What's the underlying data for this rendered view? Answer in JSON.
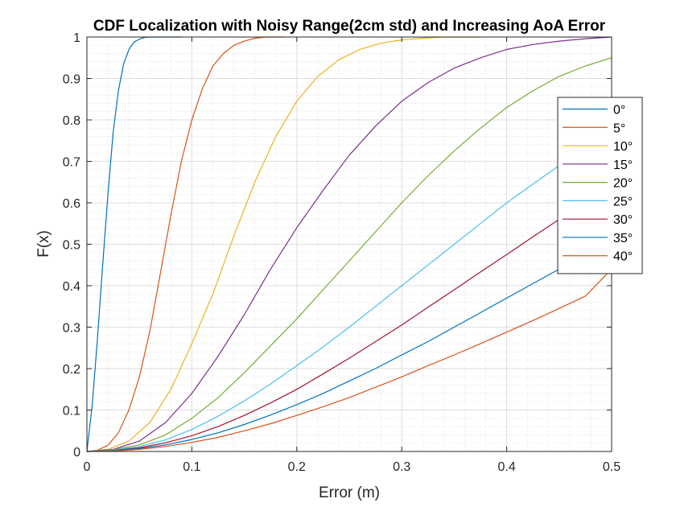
{
  "chart_data": {
    "type": "line",
    "title": "CDF Localization with Noisy Range(2cm std) and Increasing AoA Error",
    "xlabel": "Error (m)",
    "ylabel": "F(x)",
    "xlim": [
      0,
      0.5
    ],
    "ylim": [
      0,
      1
    ],
    "xticks": [
      "0",
      "0.1",
      "0.2",
      "0.3",
      "0.4",
      "0.5"
    ],
    "yticks": [
      "0",
      "0.1",
      "0.2",
      "0.3",
      "0.4",
      "0.5",
      "0.6",
      "0.7",
      "0.8",
      "0.9",
      "1"
    ],
    "grid": "major and minor",
    "legend_position": "east",
    "series": [
      {
        "name": "0°",
        "color": "#0072BD",
        "x": [
          0,
          0.005,
          0.01,
          0.015,
          0.02,
          0.025,
          0.03,
          0.035,
          0.04,
          0.045,
          0.05,
          0.055,
          0.06,
          0.07,
          0.08,
          0.09
        ],
        "y": [
          0,
          0.11,
          0.27,
          0.45,
          0.62,
          0.77,
          0.87,
          0.935,
          0.97,
          0.988,
          0.995,
          0.999,
          1,
          1,
          1,
          1
        ]
      },
      {
        "name": "5°",
        "color": "#D95319",
        "x": [
          0,
          0.01,
          0.02,
          0.03,
          0.04,
          0.05,
          0.06,
          0.07,
          0.08,
          0.09,
          0.1,
          0.11,
          0.12,
          0.13,
          0.14,
          0.15,
          0.16,
          0.17,
          0.18,
          0.19
        ],
        "y": [
          0,
          0.003,
          0.015,
          0.045,
          0.1,
          0.18,
          0.29,
          0.43,
          0.57,
          0.7,
          0.8,
          0.875,
          0.93,
          0.96,
          0.98,
          0.99,
          0.997,
          1,
          1,
          1
        ]
      },
      {
        "name": "10°",
        "color": "#EDB120",
        "x": [
          0,
          0.02,
          0.04,
          0.06,
          0.08,
          0.1,
          0.12,
          0.14,
          0.16,
          0.18,
          0.2,
          0.22,
          0.24,
          0.26,
          0.28,
          0.3,
          0.32,
          0.34,
          0.36,
          0.375
        ],
        "y": [
          0,
          0.005,
          0.025,
          0.07,
          0.15,
          0.26,
          0.38,
          0.52,
          0.65,
          0.76,
          0.845,
          0.905,
          0.945,
          0.97,
          0.985,
          0.993,
          0.997,
          1,
          1,
          1
        ]
      },
      {
        "name": "15°",
        "color": "#7E2F8E",
        "x": [
          0,
          0.025,
          0.05,
          0.075,
          0.1,
          0.125,
          0.15,
          0.175,
          0.2,
          0.225,
          0.25,
          0.275,
          0.3,
          0.325,
          0.35,
          0.375,
          0.4,
          0.425,
          0.45,
          0.475,
          0.5
        ],
        "y": [
          0,
          0.005,
          0.025,
          0.07,
          0.14,
          0.23,
          0.33,
          0.44,
          0.54,
          0.63,
          0.715,
          0.785,
          0.845,
          0.89,
          0.925,
          0.95,
          0.97,
          0.982,
          0.99,
          0.996,
          1
        ]
      },
      {
        "name": "20°",
        "color": "#77AC30",
        "x": [
          0,
          0.025,
          0.05,
          0.075,
          0.1,
          0.125,
          0.15,
          0.175,
          0.2,
          0.225,
          0.25,
          0.275,
          0.3,
          0.325,
          0.35,
          0.375,
          0.4,
          0.425,
          0.45,
          0.475,
          0.5
        ],
        "y": [
          0,
          0.004,
          0.016,
          0.04,
          0.08,
          0.13,
          0.19,
          0.255,
          0.32,
          0.39,
          0.46,
          0.53,
          0.6,
          0.665,
          0.725,
          0.78,
          0.83,
          0.87,
          0.905,
          0.93,
          0.95
        ]
      },
      {
        "name": "25°",
        "color": "#4DBEEE",
        "x": [
          0,
          0.025,
          0.05,
          0.075,
          0.1,
          0.125,
          0.15,
          0.175,
          0.2,
          0.225,
          0.25,
          0.275,
          0.3,
          0.325,
          0.35,
          0.375,
          0.4,
          0.425,
          0.45,
          0.475,
          0.5
        ],
        "y": [
          0,
          0.003,
          0.012,
          0.028,
          0.053,
          0.085,
          0.122,
          0.163,
          0.207,
          0.252,
          0.3,
          0.35,
          0.4,
          0.45,
          0.5,
          0.55,
          0.6,
          0.645,
          0.69,
          0.73,
          0.77
        ]
      },
      {
        "name": "30°",
        "color": "#A2142F",
        "x": [
          0,
          0.025,
          0.05,
          0.075,
          0.1,
          0.125,
          0.15,
          0.175,
          0.2,
          0.225,
          0.25,
          0.275,
          0.3,
          0.325,
          0.35,
          0.375,
          0.4,
          0.425,
          0.45,
          0.475,
          0.5
        ],
        "y": [
          0,
          0.002,
          0.009,
          0.021,
          0.038,
          0.06,
          0.087,
          0.117,
          0.15,
          0.187,
          0.225,
          0.265,
          0.305,
          0.348,
          0.39,
          0.433,
          0.475,
          0.518,
          0.56,
          0.598,
          0.635
        ]
      },
      {
        "name": "35°",
        "color": "#0072BD",
        "x": [
          0,
          0.025,
          0.05,
          0.075,
          0.1,
          0.125,
          0.15,
          0.175,
          0.2,
          0.225,
          0.25,
          0.275,
          0.3,
          0.325,
          0.35,
          0.375,
          0.4,
          0.425,
          0.45,
          0.475,
          0.5
        ],
        "y": [
          0,
          0.002,
          0.007,
          0.016,
          0.029,
          0.045,
          0.065,
          0.088,
          0.113,
          0.14,
          0.17,
          0.2,
          0.233,
          0.265,
          0.3,
          0.335,
          0.37,
          0.405,
          0.44,
          0.475,
          0.51
        ]
      },
      {
        "name": "40°",
        "color": "#D95319",
        "x": [
          0,
          0.025,
          0.05,
          0.075,
          0.1,
          0.125,
          0.15,
          0.175,
          0.2,
          0.225,
          0.25,
          0.275,
          0.3,
          0.325,
          0.35,
          0.375,
          0.4,
          0.425,
          0.45,
          0.475,
          0.5
        ],
        "y": [
          0,
          0.001,
          0.005,
          0.012,
          0.022,
          0.034,
          0.05,
          0.067,
          0.087,
          0.108,
          0.13,
          0.155,
          0.18,
          0.207,
          0.233,
          0.26,
          0.288,
          0.316,
          0.345,
          0.375,
          0.44
        ]
      }
    ]
  }
}
